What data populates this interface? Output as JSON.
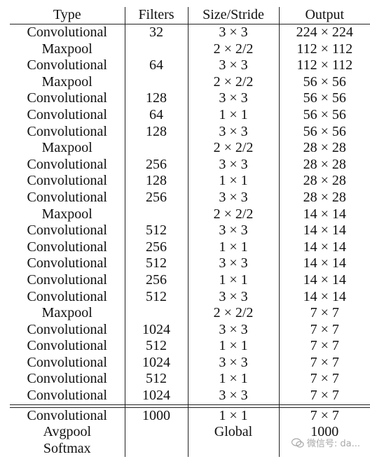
{
  "table": {
    "headers": [
      "Type",
      "Filters",
      "Size/Stride",
      "Output"
    ],
    "rows": [
      [
        "Convolutional",
        "32",
        "3 × 3",
        "224 × 224"
      ],
      [
        "Maxpool",
        "",
        "2 × 2/2",
        "112 × 112"
      ],
      [
        "Convolutional",
        "64",
        "3 × 3",
        "112 × 112"
      ],
      [
        "Maxpool",
        "",
        "2 × 2/2",
        "56 × 56"
      ],
      [
        "Convolutional",
        "128",
        "3 × 3",
        "56 × 56"
      ],
      [
        "Convolutional",
        "64",
        "1 × 1",
        "56 × 56"
      ],
      [
        "Convolutional",
        "128",
        "3 × 3",
        "56 × 56"
      ],
      [
        "Maxpool",
        "",
        "2 × 2/2",
        "28 × 28"
      ],
      [
        "Convolutional",
        "256",
        "3 × 3",
        "28 × 28"
      ],
      [
        "Convolutional",
        "128",
        "1 × 1",
        "28 × 28"
      ],
      [
        "Convolutional",
        "256",
        "3 × 3",
        "28 × 28"
      ],
      [
        "Maxpool",
        "",
        "2 × 2/2",
        "14 × 14"
      ],
      [
        "Convolutional",
        "512",
        "3 × 3",
        "14 × 14"
      ],
      [
        "Convolutional",
        "256",
        "1 × 1",
        "14 × 14"
      ],
      [
        "Convolutional",
        "512",
        "3 × 3",
        "14 × 14"
      ],
      [
        "Convolutional",
        "256",
        "1 × 1",
        "14 × 14"
      ],
      [
        "Convolutional",
        "512",
        "3 × 3",
        "14 × 14"
      ],
      [
        "Maxpool",
        "",
        "2 × 2/2",
        "7 × 7"
      ],
      [
        "Convolutional",
        "1024",
        "3 × 3",
        "7 × 7"
      ],
      [
        "Convolutional",
        "512",
        "1 × 1",
        "7 × 7"
      ],
      [
        "Convolutional",
        "1024",
        "3 × 3",
        "7 × 7"
      ],
      [
        "Convolutional",
        "512",
        "1 × 1",
        "7 × 7"
      ],
      [
        "Convolutional",
        "1024",
        "3 × 3",
        "7 × 7"
      ]
    ],
    "tail_rows": [
      [
        "Convolutional",
        "1000",
        "1 × 1",
        "7 × 7"
      ],
      [
        "Avgpool",
        "",
        "Global",
        "1000"
      ],
      [
        "Softmax",
        "",
        "",
        ""
      ]
    ]
  },
  "watermark": {
    "text": "微信号: da..."
  }
}
